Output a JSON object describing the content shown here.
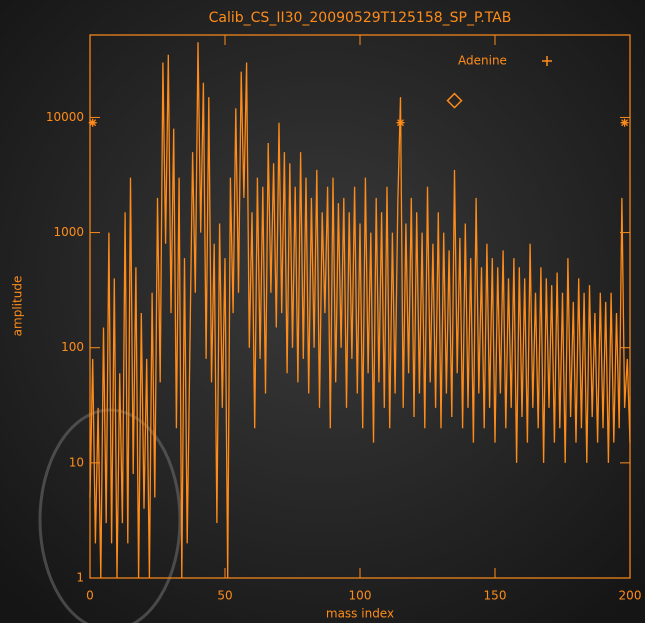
{
  "chart_data": {
    "type": "line",
    "title": "Calib_CS_II30_20090529T125158_SP_P.TAB",
    "x_label": "mass index",
    "y_label": "amplitude",
    "legend": "Adenine",
    "color": "#ff8c1a",
    "log_y": true,
    "xlim": [
      0,
      200
    ],
    "xticks": [
      0,
      50,
      100,
      150,
      200
    ],
    "ylim": [
      1,
      52000
    ],
    "yticks": [
      1,
      10,
      100,
      1000,
      10000
    ],
    "x": [
      0,
      1,
      2,
      3,
      4,
      5,
      6,
      7,
      8,
      9,
      10,
      11,
      12,
      13,
      14,
      15,
      16,
      17,
      18,
      19,
      20,
      21,
      22,
      23,
      24,
      25,
      26,
      27,
      28,
      29,
      30,
      31,
      32,
      33,
      34,
      35,
      36,
      37,
      38,
      39,
      40,
      41,
      42,
      43,
      44,
      45,
      46,
      47,
      48,
      49,
      50,
      51,
      52,
      53,
      54,
      55,
      56,
      57,
      58,
      59,
      60,
      61,
      62,
      63,
      64,
      65,
      66,
      67,
      68,
      69,
      70,
      71,
      72,
      73,
      74,
      75,
      76,
      77,
      78,
      79,
      80,
      81,
      82,
      83,
      84,
      85,
      86,
      87,
      88,
      89,
      90,
      91,
      92,
      93,
      94,
      95,
      96,
      97,
      98,
      99,
      100,
      101,
      102,
      103,
      104,
      105,
      106,
      107,
      108,
      109,
      110,
      111,
      112,
      113,
      114,
      115,
      116,
      117,
      118,
      119,
      120,
      121,
      122,
      123,
      124,
      125,
      126,
      127,
      128,
      129,
      130,
      131,
      132,
      133,
      134,
      135,
      136,
      137,
      138,
      139,
      140,
      141,
      142,
      143,
      144,
      145,
      146,
      147,
      148,
      149,
      150,
      151,
      152,
      153,
      154,
      155,
      156,
      157,
      158,
      159,
      160,
      161,
      162,
      163,
      164,
      165,
      166,
      167,
      168,
      169,
      170,
      171,
      172,
      173,
      174,
      175,
      176,
      177,
      178,
      179,
      180,
      181,
      182,
      183,
      184,
      185,
      186,
      187,
      188,
      189,
      190,
      191,
      192,
      193,
      194,
      195,
      196,
      197,
      198,
      199,
      200
    ],
    "values": [
      5,
      80,
      2,
      30,
      1,
      150,
      3,
      1000,
      2,
      400,
      1,
      60,
      3,
      1500,
      2,
      3000,
      8,
      500,
      1,
      200,
      4,
      80,
      1,
      300,
      5,
      2000,
      50,
      30000,
      800,
      35000,
      200,
      8000,
      20,
      3000,
      1,
      600,
      2,
      100,
      5000,
      300,
      45000,
      1000,
      20000,
      80,
      15000,
      50,
      800,
      3,
      1200,
      30,
      600,
      1,
      3000,
      200,
      12000,
      300,
      25000,
      2000,
      30000,
      100,
      1500,
      20,
      3000,
      80,
      2500,
      40,
      6000,
      300,
      4000,
      150,
      9000,
      200,
      5000,
      60,
      4000,
      100,
      2500,
      50,
      5000,
      80,
      3000,
      40,
      2000,
      100,
      3500,
      30,
      1500,
      200,
      2500,
      20,
      3000,
      50,
      1800,
      100,
      2000,
      30,
      1500,
      80,
      2500,
      40,
      1200,
      20,
      3000,
      60,
      1000,
      15,
      2000,
      50,
      1500,
      30,
      2500,
      20,
      1000,
      40,
      1800,
      15000,
      30,
      1200,
      60,
      2000,
      25,
      1500,
      40,
      1000,
      20,
      2500,
      50,
      800,
      30,
      1500,
      20,
      1000,
      40,
      700,
      25,
      3500,
      60,
      900,
      20,
      1200,
      30,
      600,
      15,
      2000,
      40,
      500,
      20,
      800,
      30,
      600,
      15,
      500,
      40,
      700,
      20,
      400,
      30,
      600,
      10,
      500,
      25,
      400,
      15,
      800,
      30,
      300,
      20,
      500,
      10,
      400,
      30,
      350,
      15,
      450,
      20,
      300,
      10,
      600,
      25,
      250,
      15,
      400,
      20,
      300,
      10,
      350,
      25,
      200,
      15,
      300,
      20,
      250,
      10,
      300,
      15,
      200,
      20,
      2000,
      30,
      80,
      15
    ],
    "markers": {
      "x": [
        1,
        115,
        198
      ],
      "y": [
        9000,
        9000,
        9000
      ]
    },
    "diamond": {
      "x": 135,
      "y": 14000
    }
  }
}
